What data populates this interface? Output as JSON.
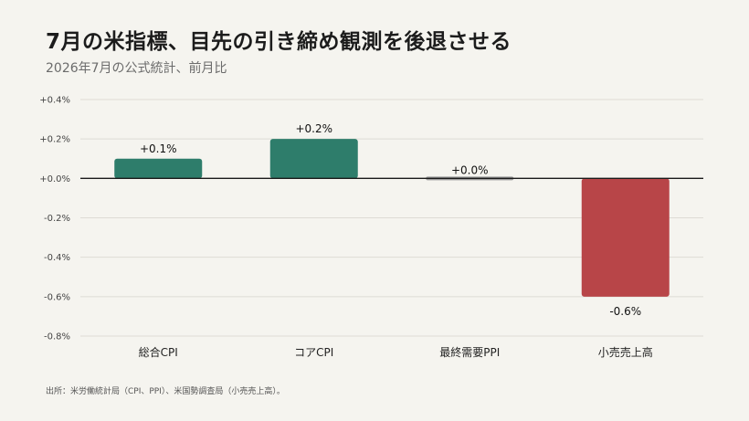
{
  "header": {
    "title": "7月の米指標、目先の引き締め観測を後退させる",
    "subtitle": "2026年7月の公式統計、前月比"
  },
  "footer": {
    "source": "出所：米労働統計局（CPI、PPI）、米国勢調査局（小売売上高）。"
  },
  "colors": {
    "positive": "#2e7d6b",
    "zero": "#9a9a9a",
    "negative": "#b84548",
    "grid": "#dedcd5",
    "zero_line": "#1a1a1a"
  },
  "chart_data": {
    "type": "bar",
    "title": "7月の米指標、目先の引き締め観測を後退させる",
    "subtitle": "2026年7月の公式統計、前月比",
    "categories": [
      "総合CPI",
      "コアCPI",
      "最終需要PPI",
      "小売売上高"
    ],
    "values": [
      0.1,
      0.2,
      0.0,
      -0.6
    ],
    "data_labels": [
      "+0.1%",
      "+0.2%",
      "+0.0%",
      "-0.6%"
    ],
    "ylim": [
      -0.8,
      0.4
    ],
    "yticks": [
      0.4,
      0.2,
      0.0,
      -0.2,
      -0.4,
      -0.6,
      -0.8
    ],
    "ytick_labels": [
      "+0.4%",
      "+0.2%",
      "+0.0%",
      "-0.2%",
      "-0.4%",
      "-0.6%",
      "-0.8%"
    ],
    "grid": true,
    "xlabel": "",
    "ylabel": ""
  }
}
